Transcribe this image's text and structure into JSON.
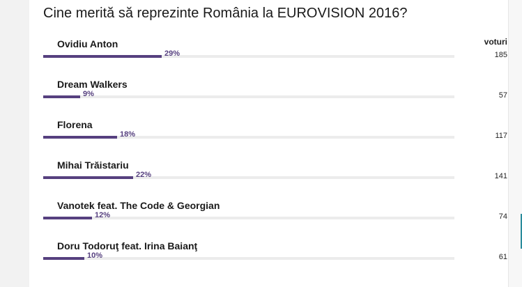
{
  "poll": {
    "title": "Cine merită să reprezinte România la EUROVISION 2016?",
    "votes_header": "voturi",
    "bar_color": "#56407f",
    "options": [
      {
        "name": "Ovidiu Anton",
        "percent_label": "29%",
        "votes": "185",
        "fraction": 0.29
      },
      {
        "name": "Dream Walkers",
        "percent_label": "9%",
        "votes": "57",
        "fraction": 0.09
      },
      {
        "name": "Florena",
        "percent_label": "18%",
        "votes": "117",
        "fraction": 0.18
      },
      {
        "name": "Mihai Trăistariu",
        "percent_label": "22%",
        "votes": "141",
        "fraction": 0.22
      },
      {
        "name": "Vanotek feat. The Code & Georgian",
        "percent_label": "12%",
        "votes": "74",
        "fraction": 0.12
      },
      {
        "name": "Doru Todoruţ feat. Irina Baianţ",
        "percent_label": "10%",
        "votes": "61",
        "fraction": 0.1
      }
    ]
  }
}
